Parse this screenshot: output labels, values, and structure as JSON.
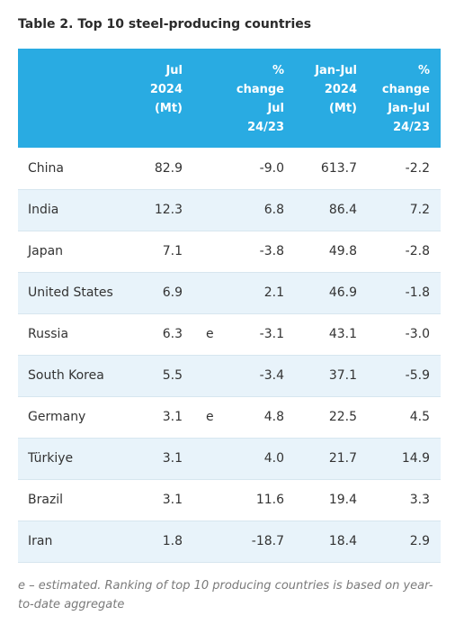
{
  "title": "Table 2. Top 10 steel-producing countries",
  "columns": {
    "jul": [
      "Jul",
      "2024",
      "(Mt)"
    ],
    "pct_jul": [
      "%",
      "change",
      "Jul",
      "24/23"
    ],
    "janjul": [
      "Jan-Jul",
      "2024",
      "(Mt)"
    ],
    "pct_janjul": [
      "%",
      "change",
      "Jan-Jul",
      "24/23"
    ]
  },
  "rows": [
    {
      "country": "China",
      "jul": "82.9",
      "flag": "",
      "pct_jul": "-9.0",
      "janjul": "613.7",
      "pct_janjul": "-2.2"
    },
    {
      "country": "India",
      "jul": "12.3",
      "flag": "",
      "pct_jul": "6.8",
      "janjul": "86.4",
      "pct_janjul": "7.2"
    },
    {
      "country": "Japan",
      "jul": "7.1",
      "flag": "",
      "pct_jul": "-3.8",
      "janjul": "49.8",
      "pct_janjul": "-2.8"
    },
    {
      "country": "United States",
      "jul": "6.9",
      "flag": "",
      "pct_jul": "2.1",
      "janjul": "46.9",
      "pct_janjul": "-1.8"
    },
    {
      "country": "Russia",
      "jul": "6.3",
      "flag": "e",
      "pct_jul": "-3.1",
      "janjul": "43.1",
      "pct_janjul": "-3.0"
    },
    {
      "country": "South Korea",
      "jul": "5.5",
      "flag": "",
      "pct_jul": "-3.4",
      "janjul": "37.1",
      "pct_janjul": "-5.9"
    },
    {
      "country": "Germany",
      "jul": "3.1",
      "flag": "e",
      "pct_jul": "4.8",
      "janjul": "22.5",
      "pct_janjul": "4.5"
    },
    {
      "country": "Türkiye",
      "jul": "3.1",
      "flag": "",
      "pct_jul": "4.0",
      "janjul": "21.7",
      "pct_janjul": "14.9"
    },
    {
      "country": "Brazil",
      "jul": "3.1",
      "flag": "",
      "pct_jul": "11.6",
      "janjul": "19.4",
      "pct_janjul": "3.3"
    },
    {
      "country": "Iran",
      "jul": "1.8",
      "flag": "",
      "pct_jul": "-18.7",
      "janjul": "18.4",
      "pct_janjul": "2.9"
    }
  ],
  "note": "e – estimated. Ranking of top 10 producing countries is based on year-to-date aggregate",
  "colors": {
    "header_bg": "#29abe2",
    "stripe_bg": "#e8f3fa",
    "header_text": "#ffffff"
  }
}
